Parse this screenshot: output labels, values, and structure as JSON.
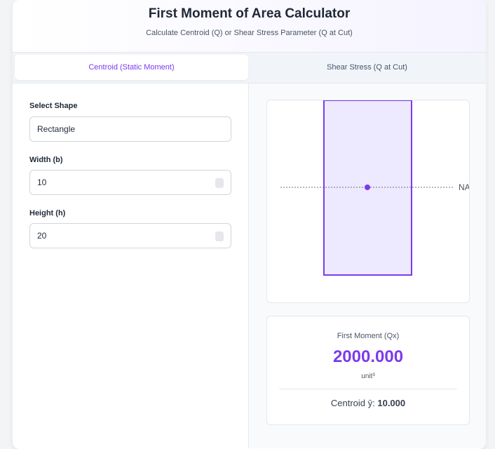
{
  "header": {
    "title": "First Moment of Area Calculator",
    "subtitle": "Calculate Centroid (Q) or Shear Stress Parameter (Q at Cut)"
  },
  "tabs": [
    "Centroid (Static Moment)",
    "Shear Stress (Q at Cut)"
  ],
  "form": {
    "shape_label": "Select Shape",
    "shape": "Rectangle",
    "width_label": "Width (b)",
    "width": "10",
    "height_label": "Height (h)",
    "height": "20"
  },
  "diagram": {
    "axis_label": "NA"
  },
  "result": {
    "label": "First Moment (Qx)",
    "value": "2000.000",
    "unit": "unit³",
    "centroid_label": "Centroid ȳ:",
    "centroid_value": "10.000"
  }
}
